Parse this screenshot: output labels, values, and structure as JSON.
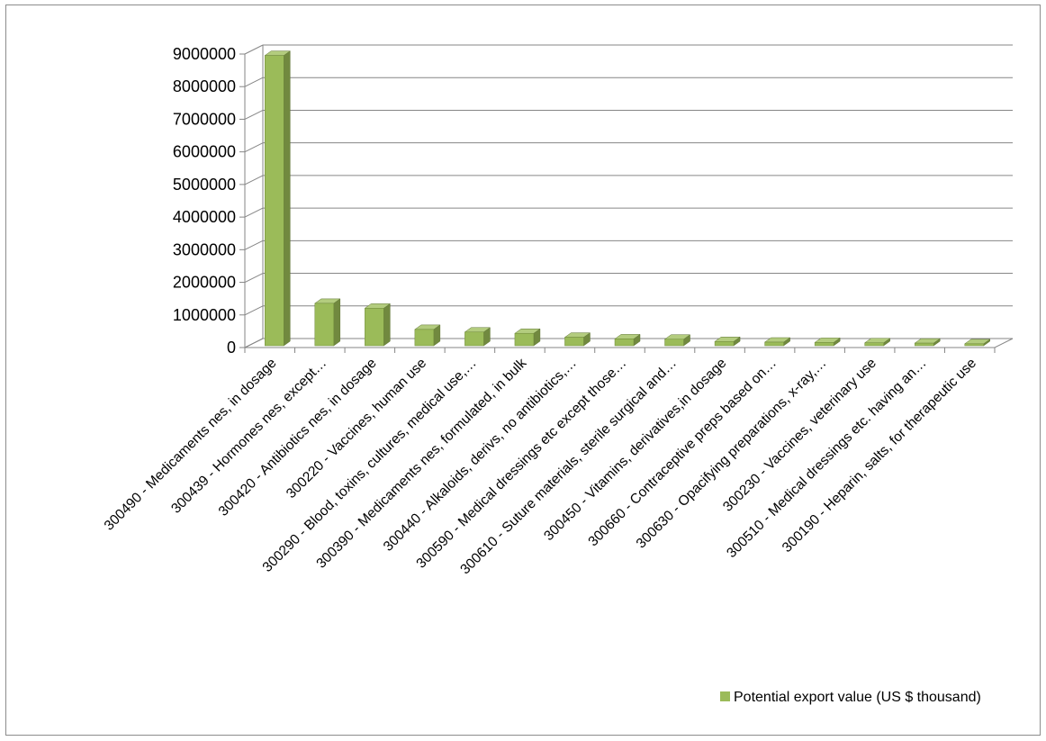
{
  "chart_data": {
    "type": "bar",
    "style": "3d-column",
    "categories": [
      "300490 - Medicaments nes, in dosage",
      "300439 - Hormones nes, except…",
      "300420 - Antibiotics nes, in dosage",
      "300220 - Vaccines, human use",
      "300290 - Blood, toxins, cultures, medical use,…",
      "300390 - Medicaments nes, formulated, in bulk",
      "300440 - Alkaloids, derivs, no antibiotics,…",
      "300590 - Medical dressings etc except those…",
      "300610 - Suture materials, sterile surgical and…",
      "300450 - Vitamins, derivatives,in dosage",
      "300660 - Contraceptive preps based on…",
      "300630 - Opacifying preparations, x-ray,…",
      "300230 - Vaccines, veterinary use",
      "300510 - Medical dressings etc. having an…",
      "300190 - Heparin, salts, for therapeutic use"
    ],
    "series": [
      {
        "name": "Potential export value (US $ thousand)",
        "values": [
          8900000,
          1300000,
          1150000,
          500000,
          420000,
          380000,
          260000,
          210000,
          200000,
          130000,
          110000,
          100000,
          90000,
          80000,
          60000
        ]
      }
    ],
    "y_ticks": [
      "0",
      "1000000",
      "2000000",
      "3000000",
      "4000000",
      "5000000",
      "6000000",
      "7000000",
      "8000000",
      "9000000"
    ],
    "ylim": [
      0,
      9000000
    ],
    "grid": true,
    "legend_position": "bottom-right",
    "colors": {
      "bar_front": "#9bbb59",
      "bar_side": "#71893f",
      "bar_top": "#b3cc7e",
      "gridline": "#868686",
      "wall": "#ffffff"
    }
  }
}
